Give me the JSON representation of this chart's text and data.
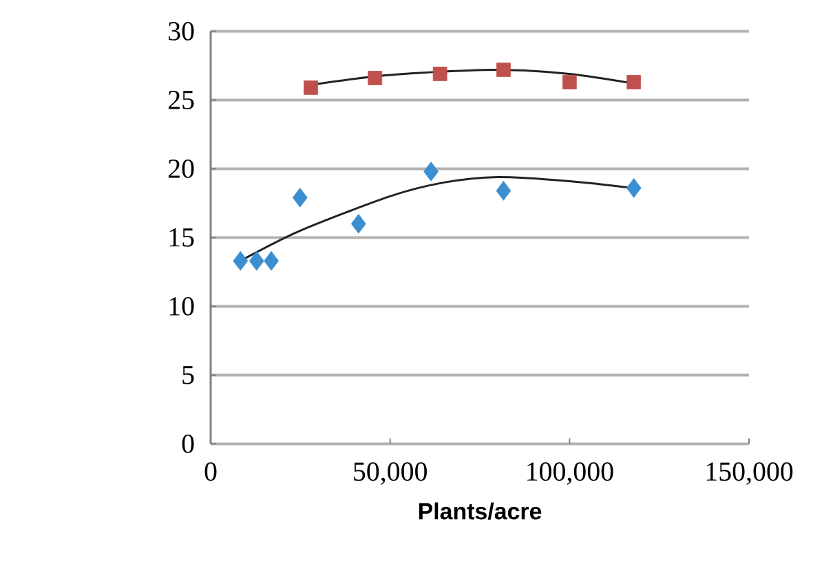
{
  "chart_data": {
    "type": "scatter",
    "xlabel": "Plants/acre",
    "xlim": [
      0,
      150000
    ],
    "ylim": [
      0,
      30
    ],
    "xticks": [
      {
        "value": 0,
        "label": "0"
      },
      {
        "value": 50000,
        "label": "50,000"
      },
      {
        "value": 100000,
        "label": "100,000"
      },
      {
        "value": 150000,
        "label": "150,000"
      }
    ],
    "yticks": [
      0,
      5,
      10,
      15,
      20,
      25,
      30
    ],
    "grid": "y",
    "series": [
      {
        "marker": "square",
        "color": "#c0504d",
        "x": [
          27900,
          45800,
          63900,
          81600,
          100000,
          117900
        ],
        "values": [
          25.9,
          26.6,
          26.9,
          27.2,
          26.3,
          26.3
        ]
      },
      {
        "marker": "diamond",
        "color": "#3b8fd0",
        "x": [
          8300,
          12800,
          16900,
          24900,
          41200,
          61400,
          81600,
          117900
        ],
        "values": [
          13.3,
          13.3,
          13.3,
          17.9,
          16.0,
          19.8,
          18.4,
          18.6
        ]
      },
      {
        "type": "line",
        "marker": "none",
        "color": "#222222",
        "x": [
          27900,
          45000,
          60000,
          80000,
          100000,
          117900
        ],
        "values": [
          26.1,
          26.7,
          27.0,
          27.2,
          26.9,
          26.2
        ]
      },
      {
        "type": "line",
        "marker": "none",
        "color": "#222222",
        "x": [
          8300,
          25000,
          50000,
          65000,
          80000,
          100000,
          117900
        ],
        "values": [
          13.3,
          15.5,
          18.0,
          19.0,
          19.4,
          19.1,
          18.6
        ]
      }
    ]
  }
}
